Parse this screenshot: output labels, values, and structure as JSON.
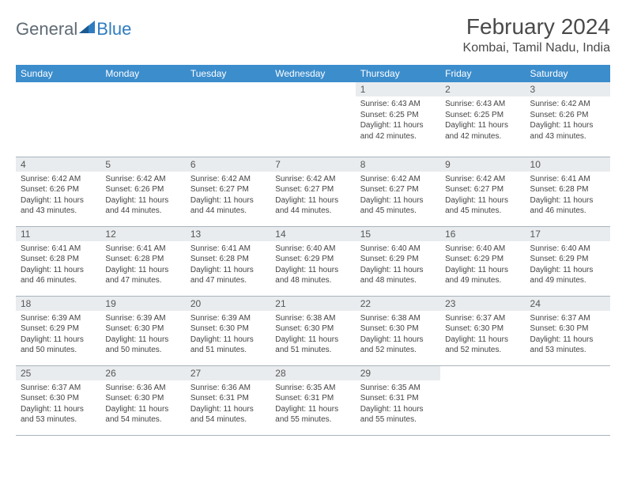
{
  "logo": {
    "text1": "General",
    "text2": "Blue"
  },
  "header": {
    "month_title": "February 2024",
    "location": "Kombai, Tamil Nadu, India"
  },
  "colors": {
    "header_bg": "#3c8dcc",
    "header_text": "#ffffff",
    "daynum_bg": "#e9ecee",
    "row_border": "#a8b4bd",
    "title_color": "#4a4a4a",
    "logo_gray": "#5f6b75",
    "logo_blue": "#2f7cc0"
  },
  "day_names": [
    "Sunday",
    "Monday",
    "Tuesday",
    "Wednesday",
    "Thursday",
    "Friday",
    "Saturday"
  ],
  "weeks": [
    [
      null,
      null,
      null,
      null,
      {
        "n": "1",
        "sr": "6:43 AM",
        "ss": "6:25 PM",
        "dl": "11 hours and 42 minutes."
      },
      {
        "n": "2",
        "sr": "6:43 AM",
        "ss": "6:25 PM",
        "dl": "11 hours and 42 minutes."
      },
      {
        "n": "3",
        "sr": "6:42 AM",
        "ss": "6:26 PM",
        "dl": "11 hours and 43 minutes."
      }
    ],
    [
      {
        "n": "4",
        "sr": "6:42 AM",
        "ss": "6:26 PM",
        "dl": "11 hours and 43 minutes."
      },
      {
        "n": "5",
        "sr": "6:42 AM",
        "ss": "6:26 PM",
        "dl": "11 hours and 44 minutes."
      },
      {
        "n": "6",
        "sr": "6:42 AM",
        "ss": "6:27 PM",
        "dl": "11 hours and 44 minutes."
      },
      {
        "n": "7",
        "sr": "6:42 AM",
        "ss": "6:27 PM",
        "dl": "11 hours and 44 minutes."
      },
      {
        "n": "8",
        "sr": "6:42 AM",
        "ss": "6:27 PM",
        "dl": "11 hours and 45 minutes."
      },
      {
        "n": "9",
        "sr": "6:42 AM",
        "ss": "6:27 PM",
        "dl": "11 hours and 45 minutes."
      },
      {
        "n": "10",
        "sr": "6:41 AM",
        "ss": "6:28 PM",
        "dl": "11 hours and 46 minutes."
      }
    ],
    [
      {
        "n": "11",
        "sr": "6:41 AM",
        "ss": "6:28 PM",
        "dl": "11 hours and 46 minutes."
      },
      {
        "n": "12",
        "sr": "6:41 AM",
        "ss": "6:28 PM",
        "dl": "11 hours and 47 minutes."
      },
      {
        "n": "13",
        "sr": "6:41 AM",
        "ss": "6:28 PM",
        "dl": "11 hours and 47 minutes."
      },
      {
        "n": "14",
        "sr": "6:40 AM",
        "ss": "6:29 PM",
        "dl": "11 hours and 48 minutes."
      },
      {
        "n": "15",
        "sr": "6:40 AM",
        "ss": "6:29 PM",
        "dl": "11 hours and 48 minutes."
      },
      {
        "n": "16",
        "sr": "6:40 AM",
        "ss": "6:29 PM",
        "dl": "11 hours and 49 minutes."
      },
      {
        "n": "17",
        "sr": "6:40 AM",
        "ss": "6:29 PM",
        "dl": "11 hours and 49 minutes."
      }
    ],
    [
      {
        "n": "18",
        "sr": "6:39 AM",
        "ss": "6:29 PM",
        "dl": "11 hours and 50 minutes."
      },
      {
        "n": "19",
        "sr": "6:39 AM",
        "ss": "6:30 PM",
        "dl": "11 hours and 50 minutes."
      },
      {
        "n": "20",
        "sr": "6:39 AM",
        "ss": "6:30 PM",
        "dl": "11 hours and 51 minutes."
      },
      {
        "n": "21",
        "sr": "6:38 AM",
        "ss": "6:30 PM",
        "dl": "11 hours and 51 minutes."
      },
      {
        "n": "22",
        "sr": "6:38 AM",
        "ss": "6:30 PM",
        "dl": "11 hours and 52 minutes."
      },
      {
        "n": "23",
        "sr": "6:37 AM",
        "ss": "6:30 PM",
        "dl": "11 hours and 52 minutes."
      },
      {
        "n": "24",
        "sr": "6:37 AM",
        "ss": "6:30 PM",
        "dl": "11 hours and 53 minutes."
      }
    ],
    [
      {
        "n": "25",
        "sr": "6:37 AM",
        "ss": "6:30 PM",
        "dl": "11 hours and 53 minutes."
      },
      {
        "n": "26",
        "sr": "6:36 AM",
        "ss": "6:30 PM",
        "dl": "11 hours and 54 minutes."
      },
      {
        "n": "27",
        "sr": "6:36 AM",
        "ss": "6:31 PM",
        "dl": "11 hours and 54 minutes."
      },
      {
        "n": "28",
        "sr": "6:35 AM",
        "ss": "6:31 PM",
        "dl": "11 hours and 55 minutes."
      },
      {
        "n": "29",
        "sr": "6:35 AM",
        "ss": "6:31 PM",
        "dl": "11 hours and 55 minutes."
      },
      null,
      null
    ]
  ],
  "labels": {
    "sunrise": "Sunrise: ",
    "sunset": "Sunset: ",
    "daylight": "Daylight: "
  }
}
